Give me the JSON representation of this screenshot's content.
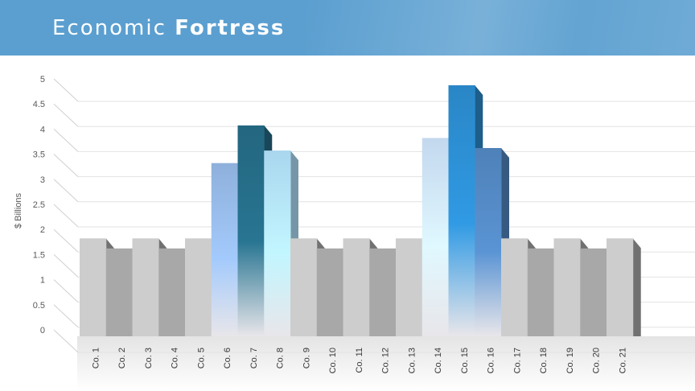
{
  "slide": {
    "title_part1": "Economic ",
    "title_part2": "Fortress"
  },
  "chart_data": {
    "type": "bar",
    "style": "3d",
    "ylabel": "$ Billions",
    "ylim": [
      0,
      5
    ],
    "yticks": [
      "0",
      "0.5",
      "1",
      "1.5",
      "2",
      "2.5",
      "3",
      "3.5",
      "4",
      "4.5",
      "5"
    ],
    "grid": true,
    "legend": "none",
    "categories": [
      "Co. 1",
      "Co. 2",
      "Co. 3",
      "Co. 4",
      "Co. 5",
      "Co. 6",
      "Co. 7",
      "Co. 8",
      "Co. 9",
      "Co. 10",
      "Co. 11",
      "Co. 12",
      "Co. 13",
      "Co. 14",
      "Co. 15",
      "Co. 16",
      "Co. 17",
      "Co. 18",
      "Co. 19",
      "Co. 20",
      "Co. 21"
    ],
    "values": [
      1.95,
      1.75,
      1.95,
      1.75,
      1.95,
      3.45,
      4.2,
      3.7,
      1.95,
      1.75,
      1.95,
      1.75,
      1.95,
      3.95,
      5.0,
      3.75,
      1.95,
      1.75,
      1.95,
      1.75,
      1.95
    ],
    "colors": {
      "light_gray": "#cdcdcd",
      "dark_gray": "#a8a8a8",
      "co6": "#8eb0db",
      "co7": "#23667f",
      "co8": "#a9d6ee",
      "co14": "#c3d8ee",
      "co15": "#2a86c6",
      "co16": "#4e81b8"
    }
  }
}
